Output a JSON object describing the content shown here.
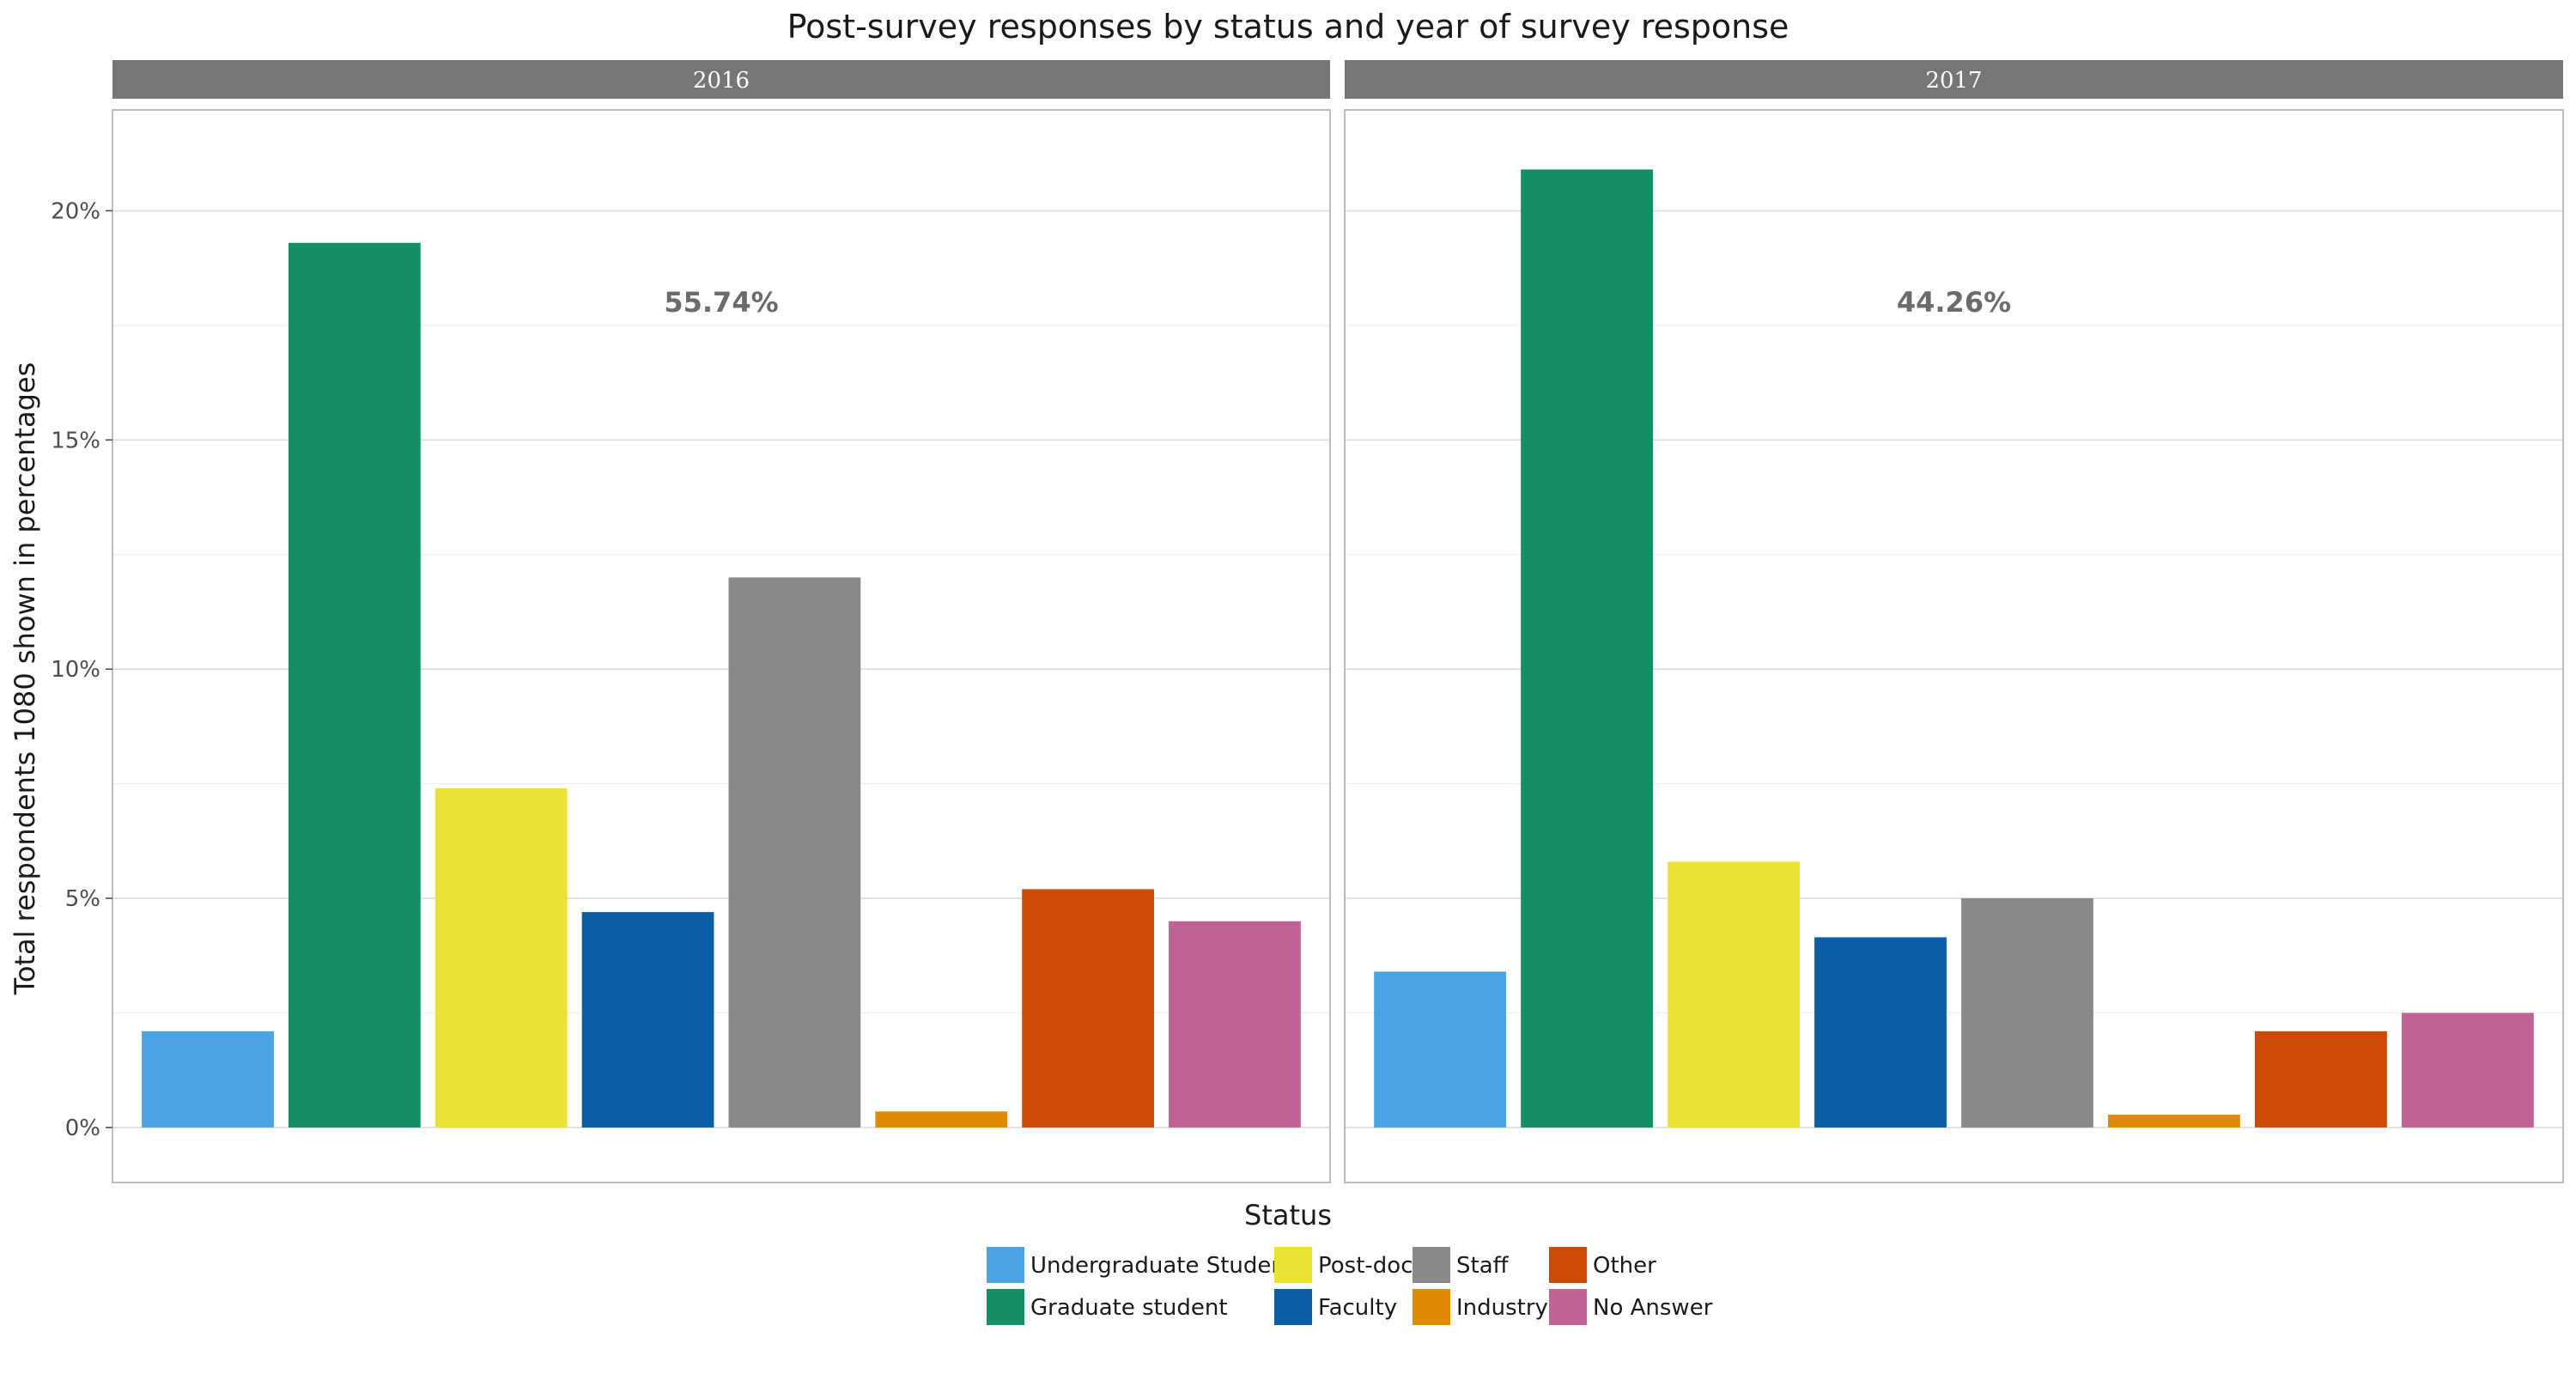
{
  "chart_data": {
    "type": "bar",
    "title": "Post-survey responses by status and year of survey response",
    "xlabel": "Status",
    "ylabel": "Total respondents 1080 shown in percentages",
    "ylim": [
      -0.012,
      0.222
    ],
    "y_ticks": [
      0,
      0.05,
      0.1,
      0.15,
      0.2
    ],
    "y_tick_labels": [
      "0%",
      "5%",
      "10%",
      "15%",
      "20%"
    ],
    "grid": true,
    "legend_position": "bottom",
    "categories": [
      "Undergraduate Student",
      "Graduate student",
      "Post-doc",
      "Faculty",
      "Staff",
      "Industry",
      "Other",
      "No Answer"
    ],
    "colors": [
      "#4aa3e2",
      "#148f63",
      "#ece235",
      "#0a5ea3",
      "#898989",
      "#e08a08",
      "#cc4a06",
      "#c06495"
    ],
    "facets": [
      {
        "label": "2016",
        "annotation": "55.74%",
        "values": [
          0.021,
          0.193,
          0.074,
          0.047,
          0.12,
          0.0035,
          0.052,
          0.045
        ]
      },
      {
        "label": "2017",
        "annotation": "44.26%",
        "values": [
          0.034,
          0.209,
          0.058,
          0.0415,
          0.05,
          0.0028,
          0.021,
          0.025
        ]
      }
    ],
    "legend": {
      "columns": [
        [
          "Undergraduate Student",
          "Graduate student"
        ],
        [
          "Post-doc",
          "Faculty"
        ],
        [
          "Staff",
          "Industry"
        ],
        [
          "Other",
          "No Answer"
        ]
      ]
    }
  }
}
